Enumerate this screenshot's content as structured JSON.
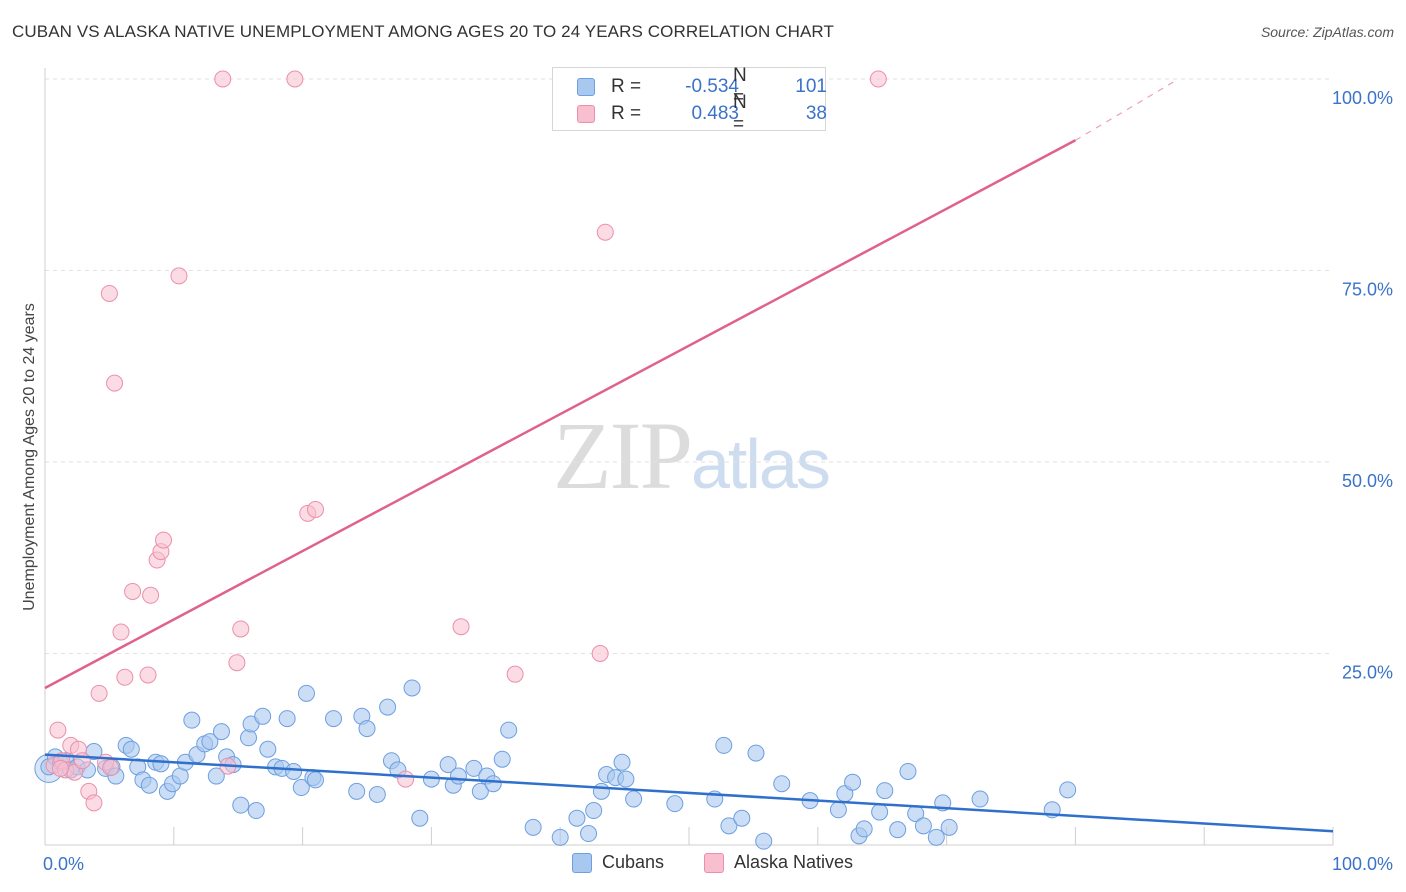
{
  "title": "CUBAN VS ALASKA NATIVE UNEMPLOYMENT AMONG AGES 20 TO 24 YEARS CORRELATION CHART",
  "source": "Source: ZipAtlas.com",
  "watermark": {
    "zip": "ZIP",
    "atlas": "atlas"
  },
  "colors": {
    "cubans_fill": "#a9c8ef",
    "cubans_stroke": "#6e9fe0",
    "cubans_line": "#2f70cc",
    "alaska_fill": "#f7bfd0",
    "alaska_stroke": "#ec8fab",
    "alaska_line": "#e0608e",
    "axis_label": "#3a73c9",
    "grid": "#e2e2e2"
  },
  "legend_top": {
    "rows": [
      {
        "r_label": "R =",
        "r_value": "-0.534",
        "n_label": "N =",
        "n_value": "101"
      },
      {
        "r_label": "R =",
        "r_value": "0.483",
        "n_label": "N =",
        "n_value": "38"
      }
    ]
  },
  "legend_bottom": {
    "cubans": "Cubans",
    "alaska": "Alaska Natives"
  },
  "chart_data": {
    "type": "scatter",
    "title": "CUBAN VS ALASKA NATIVE UNEMPLOYMENT AMONG AGES 20 TO 24 YEARS CORRELATION CHART",
    "xlabel": "",
    "ylabel": "Unemployment Among Ages 20 to 24 years",
    "xlim": [
      0,
      100
    ],
    "ylim": [
      0,
      100
    ],
    "x_tick_labels": [
      "0.0%",
      "100.0%"
    ],
    "y_tick_labels": [
      {
        "value": 25,
        "label": "25.0%"
      },
      {
        "value": 50,
        "label": "50.0%"
      },
      {
        "value": 75,
        "label": "75.0%"
      },
      {
        "value": 100,
        "label": "100.0%"
      }
    ],
    "grid": "horizontal dashed",
    "series": [
      {
        "name": "Cubans",
        "r": -0.534,
        "n": 101,
        "trend": {
          "x": [
            0,
            100
          ],
          "y": [
            11.8,
            1.8
          ],
          "dashed_from": null
        },
        "points": [
          [
            0.3,
            10.2
          ],
          [
            0.8,
            11.5
          ],
          [
            1.2,
            10.8
          ],
          [
            1.6,
            11.0
          ],
          [
            2.0,
            9.8
          ],
          [
            2.5,
            10.2
          ],
          [
            3.3,
            9.8
          ],
          [
            3.8,
            12.2
          ],
          [
            4.7,
            10.0
          ],
          [
            5.2,
            10.2
          ],
          [
            5.5,
            9.0
          ],
          [
            6.3,
            13.0
          ],
          [
            6.7,
            12.5
          ],
          [
            7.2,
            10.2
          ],
          [
            7.6,
            8.5
          ],
          [
            8.1,
            7.8
          ],
          [
            8.6,
            10.8
          ],
          [
            9.0,
            10.6
          ],
          [
            9.5,
            7.0
          ],
          [
            9.9,
            8.0
          ],
          [
            10.5,
            9.0
          ],
          [
            10.9,
            10.8
          ],
          [
            11.4,
            16.3
          ],
          [
            11.8,
            11.8
          ],
          [
            12.4,
            13.2
          ],
          [
            12.8,
            13.5
          ],
          [
            13.3,
            9.0
          ],
          [
            13.7,
            14.8
          ],
          [
            14.1,
            11.5
          ],
          [
            14.6,
            10.5
          ],
          [
            15.2,
            5.2
          ],
          [
            15.8,
            14.0
          ],
          [
            16.0,
            15.8
          ],
          [
            16.4,
            4.5
          ],
          [
            16.9,
            16.8
          ],
          [
            17.3,
            12.5
          ],
          [
            17.9,
            10.2
          ],
          [
            18.4,
            10.0
          ],
          [
            18.8,
            16.5
          ],
          [
            19.3,
            9.6
          ],
          [
            19.9,
            7.5
          ],
          [
            20.3,
            19.8
          ],
          [
            20.8,
            8.8
          ],
          [
            21.0,
            8.5
          ],
          [
            22.4,
            16.5
          ],
          [
            24.2,
            7.0
          ],
          [
            24.6,
            16.8
          ],
          [
            25.0,
            15.2
          ],
          [
            25.8,
            6.6
          ],
          [
            26.6,
            18.0
          ],
          [
            26.9,
            11.0
          ],
          [
            27.4,
            9.8
          ],
          [
            28.5,
            20.5
          ],
          [
            29.1,
            3.5
          ],
          [
            30.0,
            8.6
          ],
          [
            31.3,
            10.5
          ],
          [
            31.7,
            7.8
          ],
          [
            32.1,
            9.0
          ],
          [
            33.3,
            10.0
          ],
          [
            33.8,
            7.0
          ],
          [
            34.3,
            9.0
          ],
          [
            34.8,
            8.0
          ],
          [
            35.5,
            11.2
          ],
          [
            36.0,
            15.0
          ],
          [
            37.9,
            2.3
          ],
          [
            40.0,
            1.0
          ],
          [
            41.3,
            3.5
          ],
          [
            42.2,
            1.5
          ],
          [
            42.6,
            4.5
          ],
          [
            43.2,
            7.0
          ],
          [
            43.6,
            9.2
          ],
          [
            44.3,
            8.8
          ],
          [
            44.8,
            10.8
          ],
          [
            45.1,
            8.6
          ],
          [
            45.7,
            6.0
          ],
          [
            48.9,
            5.4
          ],
          [
            52.0,
            6.0
          ],
          [
            52.7,
            13.0
          ],
          [
            53.1,
            2.5
          ],
          [
            54.1,
            3.5
          ],
          [
            55.2,
            12.0
          ],
          [
            55.8,
            0.5
          ],
          [
            57.2,
            8.0
          ],
          [
            59.4,
            5.8
          ],
          [
            61.6,
            4.6
          ],
          [
            62.1,
            6.7
          ],
          [
            62.7,
            8.2
          ],
          [
            63.2,
            1.2
          ],
          [
            63.6,
            2.1
          ],
          [
            64.8,
            4.3
          ],
          [
            65.2,
            7.1
          ],
          [
            66.2,
            2.0
          ],
          [
            67.0,
            9.6
          ],
          [
            67.6,
            4.1
          ],
          [
            68.2,
            2.5
          ],
          [
            69.2,
            1.0
          ],
          [
            69.7,
            5.5
          ],
          [
            70.2,
            2.3
          ],
          [
            72.6,
            6.0
          ],
          [
            78.2,
            4.6
          ],
          [
            79.4,
            7.2
          ]
        ]
      },
      {
        "name": "Alaska Natives",
        "r": 0.483,
        "n": 38,
        "trend": {
          "x": [
            0,
            80
          ],
          "y": [
            20.5,
            92.0
          ],
          "dashed_to": [
            88,
            100
          ]
        },
        "points": [
          [
            0.7,
            10.4
          ],
          [
            1.0,
            15.0
          ],
          [
            1.3,
            11.0
          ],
          [
            1.6,
            9.8
          ],
          [
            2.0,
            13.0
          ],
          [
            2.3,
            9.5
          ],
          [
            2.6,
            12.5
          ],
          [
            2.9,
            11.0
          ],
          [
            3.4,
            7.0
          ],
          [
            3.8,
            5.5
          ],
          [
            4.2,
            19.8
          ],
          [
            4.7,
            10.8
          ],
          [
            5.0,
            72.0
          ],
          [
            5.1,
            10.1
          ],
          [
            5.4,
            60.3
          ],
          [
            5.9,
            27.8
          ],
          [
            6.2,
            21.9
          ],
          [
            6.8,
            33.1
          ],
          [
            8.0,
            22.2
          ],
          [
            8.2,
            32.6
          ],
          [
            8.7,
            37.2
          ],
          [
            9.0,
            38.3
          ],
          [
            9.2,
            39.8
          ],
          [
            10.4,
            74.3
          ],
          [
            13.8,
            100
          ],
          [
            14.2,
            10.3
          ],
          [
            14.9,
            23.8
          ],
          [
            15.2,
            28.2
          ],
          [
            19.4,
            100
          ],
          [
            20.4,
            43.3
          ],
          [
            21.0,
            43.8
          ],
          [
            28.0,
            8.6
          ],
          [
            32.3,
            28.5
          ],
          [
            36.5,
            22.3
          ],
          [
            43.1,
            25.0
          ],
          [
            43.5,
            80.0
          ],
          [
            64.7,
            100
          ],
          [
            1.2,
            10.0
          ]
        ]
      }
    ]
  }
}
